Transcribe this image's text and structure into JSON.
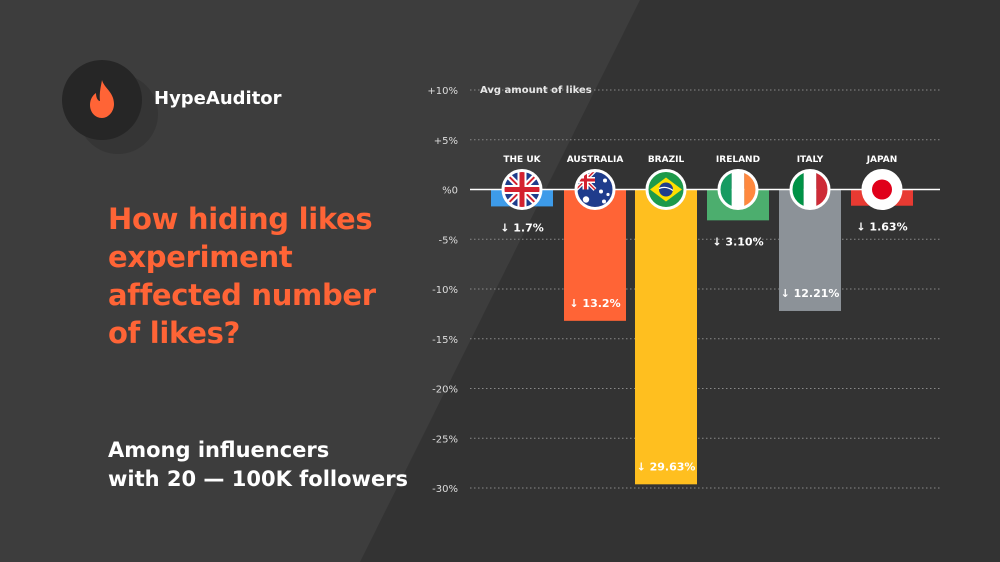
{
  "brand": {
    "name": "HypeAuditor"
  },
  "headline": "How hiding likes experiment affected number of likes?",
  "subtitle": {
    "line1": "Among influencers",
    "line2": "with 20 — 100K followers"
  },
  "colors": {
    "background": "#3d3d3d",
    "accent": "#ff6436",
    "uk": "#3d9be9",
    "australia": "#ff6436",
    "brazil": "#ffbf1f",
    "ireland": "#4cae6e",
    "italy": "#8c9298",
    "japan": "#e83a32"
  },
  "chart_data": {
    "type": "bar",
    "ylabel": "Avg amount of likes",
    "ylim": [
      -30,
      10
    ],
    "yticks": [
      10,
      5,
      0,
      -5,
      -10,
      -15,
      -20,
      -25,
      -30
    ],
    "ytick_labels": [
      "+10%",
      "+5%",
      "%0",
      "-5%",
      "-10%",
      "-15%",
      "-20%",
      "-25%",
      "-30%"
    ],
    "grid": true,
    "categories": [
      "THE UK",
      "AUSTRALIA",
      "BRAZIL",
      "IRELAND",
      "ITALY",
      "JAPAN"
    ],
    "values": [
      -1.7,
      -13.2,
      -29.63,
      -3.1,
      -12.21,
      -1.63
    ],
    "value_labels": [
      "↓ 1.7%",
      "↓ 13.2%",
      "↓ 29.63%",
      "↓ 3.10%",
      "↓ 12.21%",
      "↓ 1.63%"
    ],
    "flag_icons": [
      "uk-flag-icon",
      "australia-flag-icon",
      "brazil-flag-icon",
      "ireland-flag-icon",
      "italy-flag-icon",
      "japan-flag-icon"
    ]
  }
}
